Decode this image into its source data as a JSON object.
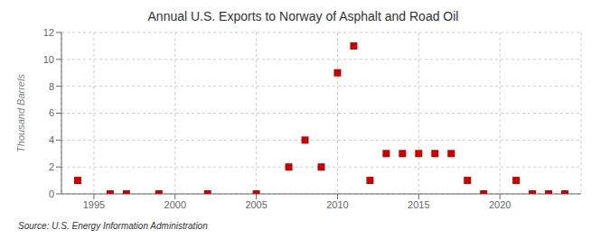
{
  "chart_data": {
    "type": "scatter",
    "title": "Annual U.S. Exports to Norway of Asphalt and Road Oil",
    "ylabel": "Thousand Barrels",
    "annotations": [
      "Source: U.S. Energy Information Administration"
    ],
    "x": [
      1994,
      1996,
      1997,
      1999,
      2002,
      2005,
      2007,
      2008,
      2009,
      2010,
      2011,
      2012,
      2013,
      2014,
      2015,
      2016,
      2017,
      2018,
      2019,
      2021,
      2022,
      2023,
      2024
    ],
    "values": [
      1,
      0,
      0,
      0,
      0,
      0,
      2,
      4,
      2,
      9,
      11,
      1,
      3,
      3,
      3,
      3,
      3,
      1,
      0,
      1,
      0,
      0,
      0
    ],
    "color": "#cc0000",
    "marker": "square",
    "xlim": [
      1993,
      2025
    ],
    "ylim": [
      0,
      12
    ],
    "xticks": [
      1995,
      2000,
      2005,
      2010,
      2015,
      2020
    ],
    "yticks": [
      0,
      2,
      4,
      6,
      8,
      10,
      12
    ],
    "grid": true
  }
}
